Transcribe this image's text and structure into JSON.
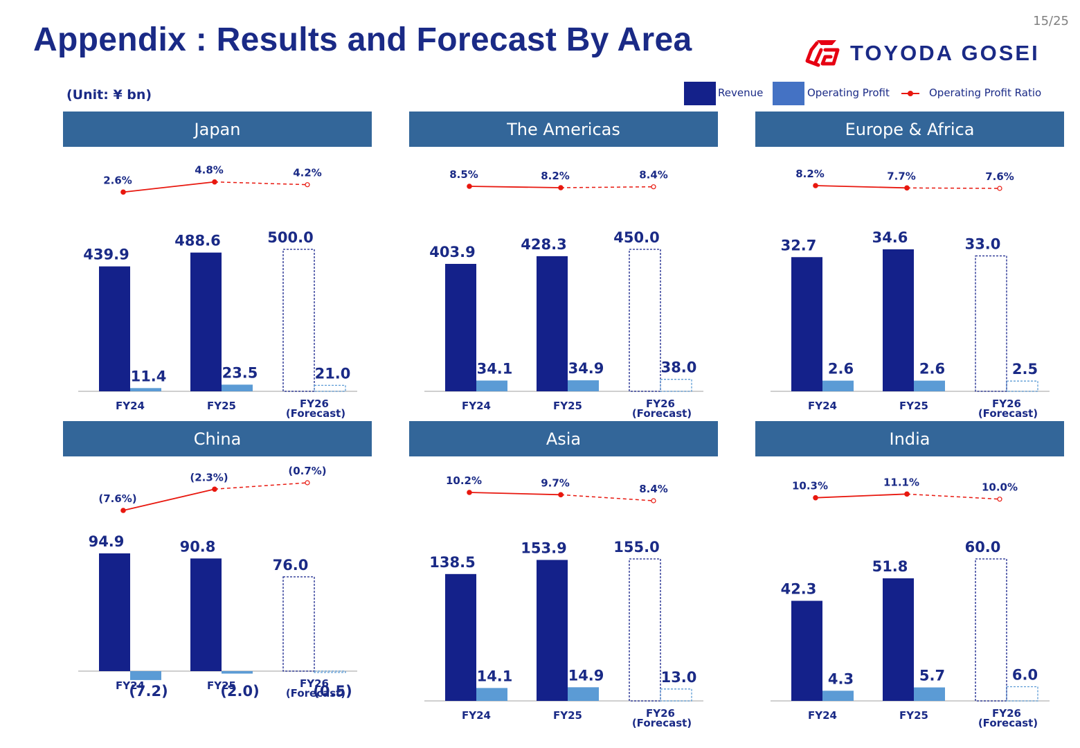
{
  "page_number": "15/25",
  "title": "Appendix : Results and Forecast By Area",
  "logo_text": "TOYODA GOSEI",
  "unit": "(Unit: ¥ bn)",
  "legend": {
    "revenue": "Revenue",
    "operating_profit": "Operating Profit",
    "ratio": "Operating Profit Ratio"
  },
  "colors": {
    "revenue": "#14218a",
    "profit": "#5b9bd5",
    "ratio": "#e8170e",
    "header": "#336699",
    "text": "#1a2a86",
    "logo_red": "#e60012",
    "logo_blue": "#1a2a86"
  },
  "chart_data": [
    {
      "type": "bar",
      "region": "Japan",
      "categories": [
        "FY24",
        "FY25",
        "FY26"
      ],
      "category_sublabels": [
        "",
        "",
        "(Forecast)"
      ],
      "forecast_index": 2,
      "series": [
        {
          "name": "Revenue",
          "values": [
            439.9,
            488.6,
            500.0
          ],
          "labels": [
            "439.9",
            "488.6",
            "500.0"
          ]
        },
        {
          "name": "Operating Profit",
          "values": [
            11.4,
            23.5,
            21.0
          ],
          "labels": [
            "11.4",
            "23.5",
            "21.0"
          ]
        },
        {
          "name": "Operating Profit Ratio",
          "values": [
            2.6,
            4.8,
            4.2
          ],
          "labels": [
            "2.6%",
            "4.8%",
            "4.2%"
          ]
        }
      ]
    },
    {
      "type": "bar",
      "region": "The Americas",
      "categories": [
        "FY24",
        "FY25",
        "FY26"
      ],
      "category_sublabels": [
        "",
        "",
        "(Forecast)"
      ],
      "forecast_index": 2,
      "series": [
        {
          "name": "Revenue",
          "values": [
            403.9,
            428.3,
            450.0
          ],
          "labels": [
            "403.9",
            "428.3",
            "450.0"
          ]
        },
        {
          "name": "Operating Profit",
          "values": [
            34.1,
            34.9,
            38.0
          ],
          "labels": [
            "34.1",
            "34.9",
            "38.0"
          ]
        },
        {
          "name": "Operating Profit Ratio",
          "values": [
            8.5,
            8.2,
            8.4
          ],
          "labels": [
            "8.5%",
            "8.2%",
            "8.4%"
          ]
        }
      ]
    },
    {
      "type": "bar",
      "region": "Europe & Africa",
      "categories": [
        "FY24",
        "FY25",
        "FY26"
      ],
      "category_sublabels": [
        "",
        "",
        "(Forecast)"
      ],
      "forecast_index": 2,
      "series": [
        {
          "name": "Revenue",
          "values": [
            32.7,
            34.6,
            33.0
          ],
          "labels": [
            "32.7",
            "34.6",
            "33.0"
          ]
        },
        {
          "name": "Operating Profit",
          "values": [
            2.6,
            2.6,
            2.5
          ],
          "labels": [
            "2.6",
            "2.6",
            "2.5"
          ]
        },
        {
          "name": "Operating Profit Ratio",
          "values": [
            8.2,
            7.7,
            7.6
          ],
          "labels": [
            "8.2%",
            "7.7%",
            "7.6%"
          ]
        }
      ]
    },
    {
      "type": "bar",
      "region": "China",
      "categories": [
        "FY24",
        "FY25",
        "FY26"
      ],
      "category_sublabels": [
        "",
        "",
        "(Forecast)"
      ],
      "forecast_index": 2,
      "series": [
        {
          "name": "Revenue",
          "values": [
            94.9,
            90.8,
            76.0
          ],
          "labels": [
            "94.9",
            "90.8",
            "76.0"
          ]
        },
        {
          "name": "Operating Profit",
          "values": [
            -7.2,
            -2.0,
            -0.5
          ],
          "labels": [
            "(7.2)",
            "(2.0)",
            "(0.5)"
          ]
        },
        {
          "name": "Operating Profit Ratio",
          "values": [
            -7.6,
            -2.3,
            -0.7
          ],
          "labels": [
            "(7.6%)",
            "(2.3%)",
            "(0.7%)"
          ]
        }
      ]
    },
    {
      "type": "bar",
      "region": "Asia",
      "categories": [
        "FY24",
        "FY25",
        "FY26"
      ],
      "category_sublabels": [
        "",
        "",
        "(Forecast)"
      ],
      "forecast_index": 2,
      "series": [
        {
          "name": "Revenue",
          "values": [
            138.5,
            153.9,
            155.0
          ],
          "labels": [
            "138.5",
            "153.9",
            "155.0"
          ]
        },
        {
          "name": "Operating Profit",
          "values": [
            14.1,
            14.9,
            13.0
          ],
          "labels": [
            "14.1",
            "14.9",
            "13.0"
          ]
        },
        {
          "name": "Operating Profit Ratio",
          "values": [
            10.2,
            9.7,
            8.4
          ],
          "labels": [
            "10.2%",
            "9.7%",
            "8.4%"
          ]
        }
      ]
    },
    {
      "type": "bar",
      "region": "India",
      "categories": [
        "FY24",
        "FY25",
        "FY26"
      ],
      "category_sublabels": [
        "",
        "",
        "(Forecast)"
      ],
      "forecast_index": 2,
      "series": [
        {
          "name": "Revenue",
          "values": [
            42.3,
            51.8,
            60.0
          ],
          "labels": [
            "42.3",
            "51.8",
            "60.0"
          ]
        },
        {
          "name": "Operating Profit",
          "values": [
            4.3,
            5.7,
            6.0
          ],
          "labels": [
            "4.3",
            "5.7",
            "6.0"
          ]
        },
        {
          "name": "Operating Profit Ratio",
          "values": [
            10.3,
            11.1,
            10.0
          ],
          "labels": [
            "10.3%",
            "11.1%",
            "10.0%"
          ]
        }
      ]
    }
  ]
}
